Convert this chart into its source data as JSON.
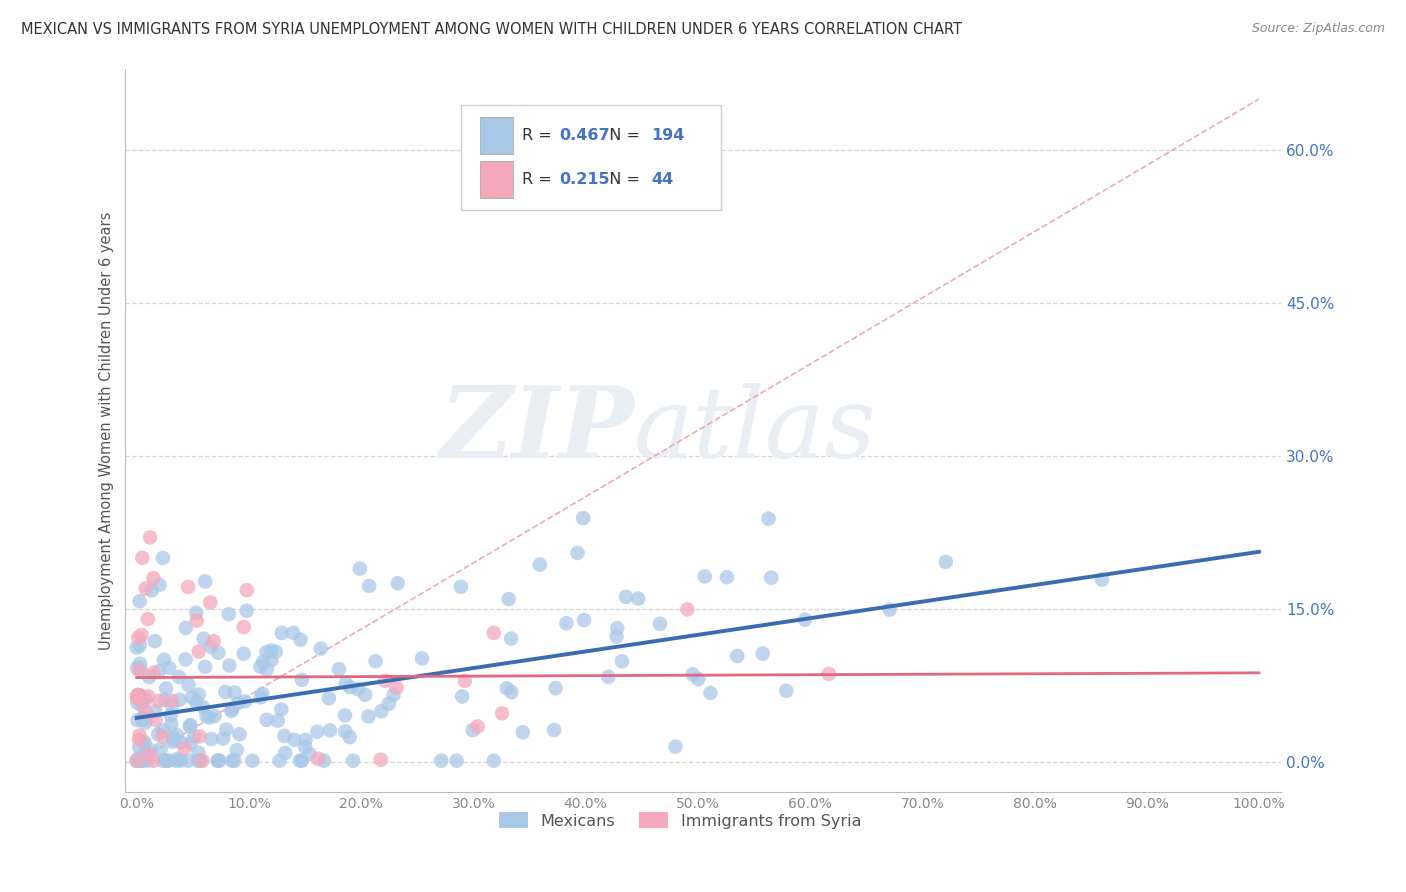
{
  "title": "MEXICAN VS IMMIGRANTS FROM SYRIA UNEMPLOYMENT AMONG WOMEN WITH CHILDREN UNDER 6 YEARS CORRELATION CHART",
  "source": "Source: ZipAtlas.com",
  "ylabel": "Unemployment Among Women with Children Under 6 years",
  "legend_labels": [
    "Mexicans",
    "Immigrants from Syria"
  ],
  "legend_R": [
    0.467,
    0.215
  ],
  "legend_N": [
    194,
    44
  ],
  "xticks": [
    0.0,
    0.1,
    0.2,
    0.3,
    0.4,
    0.5,
    0.6,
    0.7,
    0.8,
    0.9,
    1.0
  ],
  "xtick_labels": [
    "0.0%",
    "10.0%",
    "20.0%",
    "30.0%",
    "40.0%",
    "50.0%",
    "60.0%",
    "70.0%",
    "80.0%",
    "90.0%",
    "100.0%"
  ],
  "yticks": [
    0.0,
    0.15,
    0.3,
    0.45,
    0.6
  ],
  "ytick_labels": [
    "0.0%",
    "15.0%",
    "30.0%",
    "45.0%",
    "60.0%"
  ],
  "color_mexican": "#A8C8E8",
  "color_syria": "#F4A8BC",
  "color_mexican_line": "#3A6CB0",
  "color_syria_line": "#E06880",
  "color_r_value": "#4472C4",
  "color_ytick": "#4472C4",
  "color_xtick": "#888888",
  "background_color": "#FFFFFF",
  "watermark_zip": "ZIP",
  "watermark_atlas": "atlas",
  "watermark_color": "#E8EEF4",
  "grid_color": "#CCCCCC",
  "ref_line_color": "#E8A0B0",
  "title_color": "#333333",
  "source_color": "#888888"
}
